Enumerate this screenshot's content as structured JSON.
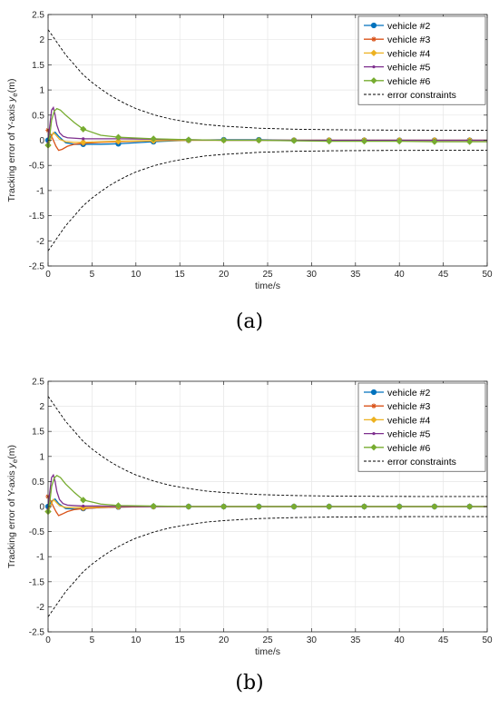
{
  "chart_data": [
    {
      "type": "line",
      "caption": "(a)",
      "xlabel": "time/s",
      "ylabel": "Tracking error of Y-axis",
      "ylabel_symbol": "y",
      "ylabel_sub": "e",
      "ylabel_unit": "(m)",
      "xlim": [
        0,
        50
      ],
      "ylim": [
        -2.5,
        2.5
      ],
      "xticks": [
        0,
        5,
        10,
        15,
        20,
        25,
        30,
        35,
        40,
        45,
        50
      ],
      "yticks": [
        -2.5,
        -2,
        -1.5,
        -1,
        -0.5,
        0,
        0.5,
        1,
        1.5,
        2,
        2.5
      ],
      "grid": true,
      "legend_position": "top-right",
      "series": [
        {
          "name": "vehicle #2",
          "color": "#0072BD",
          "marker": "circle",
          "x": [
            0,
            0.2,
            0.5,
            0.8,
            1.2,
            2,
            3,
            4,
            6,
            8,
            12,
            16,
            20,
            24,
            28,
            32,
            36,
            40,
            44,
            48,
            50
          ],
          "y": [
            0,
            0.05,
            0.12,
            0.16,
            0.08,
            -0.05,
            -0.08,
            -0.08,
            -0.08,
            -0.07,
            -0.03,
            0.0,
            0.01,
            0.01,
            0.0,
            0.0,
            0.0,
            0.0,
            0.0,
            0.0,
            0.0
          ]
        },
        {
          "name": "vehicle #3",
          "color": "#D95319",
          "marker": "star",
          "x": [
            0,
            0.3,
            0.6,
            0.9,
            1.2,
            1.6,
            2.2,
            3,
            4,
            6,
            8,
            12,
            16,
            20,
            24,
            28,
            32,
            36,
            40,
            44,
            48,
            50
          ],
          "y": [
            0.2,
            0.12,
            0.0,
            -0.12,
            -0.2,
            -0.18,
            -0.12,
            -0.08,
            -0.06,
            -0.04,
            -0.03,
            -0.01,
            0.0,
            0.0,
            0.0,
            0.0,
            0.0,
            0.0,
            0.0,
            0.0,
            0.0,
            0.0
          ]
        },
        {
          "name": "vehicle #4",
          "color": "#EDB120",
          "marker": "diamond",
          "x": [
            0,
            0.3,
            0.6,
            0.9,
            1.3,
            2,
            3,
            4,
            6,
            8,
            12,
            16,
            20,
            24,
            28,
            32,
            36,
            40,
            44,
            48,
            50
          ],
          "y": [
            -0.1,
            0.02,
            0.15,
            0.1,
            0.02,
            -0.03,
            -0.04,
            -0.04,
            -0.03,
            -0.02,
            -0.01,
            0.0,
            0.0,
            0.0,
            0.0,
            0.0,
            0.0,
            0.0,
            0.0,
            0.0,
            0.0
          ]
        },
        {
          "name": "vehicle #5",
          "color": "#7E2F8E",
          "marker": "point",
          "x": [
            0,
            0.2,
            0.4,
            0.6,
            0.8,
            1.0,
            1.3,
            1.7,
            2.2,
            3,
            4,
            6,
            8,
            12,
            16,
            20,
            24,
            28,
            32,
            36,
            40,
            44,
            48,
            50
          ],
          "y": [
            -0.05,
            0.3,
            0.6,
            0.65,
            0.5,
            0.3,
            0.15,
            0.08,
            0.05,
            0.04,
            0.03,
            0.03,
            0.03,
            0.02,
            0.01,
            0.0,
            0.0,
            0.0,
            0.0,
            0.0,
            0.0,
            0.0,
            0.0,
            0.0
          ]
        },
        {
          "name": "vehicle #6",
          "color": "#77AC30",
          "marker": "diamond",
          "x": [
            0,
            0.2,
            0.4,
            0.7,
            1.0,
            1.4,
            2,
            3,
            4,
            6,
            8,
            12,
            16,
            20,
            24,
            28,
            32,
            36,
            40,
            44,
            48,
            50
          ],
          "y": [
            -0.1,
            0.1,
            0.4,
            0.58,
            0.63,
            0.6,
            0.5,
            0.35,
            0.22,
            0.1,
            0.06,
            0.03,
            0.01,
            0.0,
            0.0,
            -0.01,
            -0.02,
            -0.02,
            -0.02,
            -0.03,
            -0.03,
            -0.03
          ]
        },
        {
          "name": "error constraints",
          "color": "#000000",
          "marker": "none",
          "dashed": true,
          "x": [
            0,
            1,
            2,
            3,
            4,
            5,
            6,
            7,
            8,
            9,
            10,
            12,
            14,
            16,
            18,
            20,
            22,
            24,
            26,
            28,
            30,
            32,
            34,
            36,
            38,
            40,
            42,
            44,
            46,
            48,
            50
          ],
          "y": [
            2.2,
            1.95,
            1.7,
            1.5,
            1.3,
            1.15,
            1.02,
            0.9,
            0.8,
            0.71,
            0.63,
            0.51,
            0.42,
            0.36,
            0.31,
            0.28,
            0.26,
            0.24,
            0.23,
            0.22,
            0.215,
            0.21,
            0.207,
            0.205,
            0.203,
            0.202,
            0.201,
            0.2,
            0.2,
            0.2,
            0.2
          ]
        }
      ]
    },
    {
      "type": "line",
      "caption": "(b)",
      "xlabel": "time/s",
      "ylabel": "Tracking error of Y-axis",
      "ylabel_symbol": "y",
      "ylabel_sub": "e",
      "ylabel_unit": "(m)",
      "xlim": [
        0,
        50
      ],
      "ylim": [
        -2.5,
        2.5
      ],
      "xticks": [
        0,
        5,
        10,
        15,
        20,
        25,
        30,
        35,
        40,
        45,
        50
      ],
      "yticks": [
        -2.5,
        -2,
        -1.5,
        -1,
        -0.5,
        0,
        0.5,
        1,
        1.5,
        2,
        2.5
      ],
      "grid": true,
      "legend_position": "top-right",
      "series": [
        {
          "name": "vehicle #2",
          "color": "#0072BD",
          "marker": "circle",
          "x": [
            0,
            0.2,
            0.5,
            0.8,
            1.2,
            2,
            3,
            4,
            6,
            8,
            12,
            16,
            20,
            24,
            28,
            32,
            36,
            40,
            44,
            48,
            50
          ],
          "y": [
            0,
            0.05,
            0.12,
            0.15,
            0.06,
            -0.04,
            -0.05,
            -0.04,
            -0.02,
            -0.01,
            0.0,
            0.0,
            0.0,
            0.0,
            0.0,
            0.0,
            0.0,
            0.0,
            0.0,
            0.0,
            0.0
          ]
        },
        {
          "name": "vehicle #3",
          "color": "#D95319",
          "marker": "star",
          "x": [
            0,
            0.3,
            0.6,
            0.9,
            1.2,
            1.6,
            2.2,
            3,
            4,
            6,
            8,
            12,
            16,
            20,
            24,
            28,
            32,
            36,
            40,
            44,
            48,
            50
          ],
          "y": [
            0.2,
            0.12,
            0.0,
            -0.1,
            -0.18,
            -0.15,
            -0.1,
            -0.06,
            -0.04,
            -0.02,
            -0.01,
            0.0,
            0.0,
            0.0,
            0.0,
            0.0,
            0.0,
            0.0,
            0.0,
            0.0,
            0.0,
            0.0
          ]
        },
        {
          "name": "vehicle #4",
          "color": "#EDB120",
          "marker": "diamond",
          "x": [
            0,
            0.3,
            0.6,
            0.9,
            1.3,
            2,
            3,
            4,
            6,
            8,
            12,
            16,
            20,
            24,
            28,
            32,
            36,
            40,
            44,
            48,
            50
          ],
          "y": [
            -0.1,
            0.02,
            0.14,
            0.09,
            0.02,
            -0.02,
            -0.02,
            -0.02,
            -0.01,
            0.0,
            0.0,
            0.0,
            0.0,
            0.0,
            0.0,
            0.0,
            0.0,
            0.0,
            0.0,
            0.0,
            0.0
          ]
        },
        {
          "name": "vehicle #5",
          "color": "#7E2F8E",
          "marker": "point",
          "x": [
            0,
            0.2,
            0.4,
            0.6,
            0.8,
            1.0,
            1.3,
            1.7,
            2.2,
            3,
            4,
            6,
            8,
            12,
            16,
            20,
            24,
            28,
            32,
            36,
            40,
            44,
            48,
            50
          ],
          "y": [
            -0.05,
            0.3,
            0.58,
            0.63,
            0.5,
            0.3,
            0.14,
            0.06,
            0.03,
            0.02,
            0.01,
            0.01,
            0.0,
            0.0,
            0.0,
            0.0,
            0.0,
            0.0,
            0.0,
            0.0,
            0.0,
            0.0,
            0.0,
            0.0
          ]
        },
        {
          "name": "vehicle #6",
          "color": "#77AC30",
          "marker": "diamond",
          "x": [
            0,
            0.2,
            0.4,
            0.7,
            1.0,
            1.4,
            2,
            3,
            4,
            6,
            8,
            12,
            16,
            20,
            24,
            28,
            32,
            36,
            40,
            44,
            48,
            50
          ],
          "y": [
            -0.1,
            0.1,
            0.4,
            0.57,
            0.62,
            0.58,
            0.45,
            0.28,
            0.13,
            0.05,
            0.02,
            0.01,
            0.0,
            0.0,
            0.0,
            0.0,
            0.0,
            0.0,
            0.0,
            0.0,
            0.0,
            0.0
          ]
        },
        {
          "name": "error constraints",
          "color": "#000000",
          "marker": "none",
          "dashed": true,
          "x": [
            0,
            1,
            2,
            3,
            4,
            5,
            6,
            7,
            8,
            9,
            10,
            12,
            14,
            16,
            18,
            20,
            22,
            24,
            26,
            28,
            30,
            32,
            34,
            36,
            38,
            40,
            42,
            44,
            46,
            48,
            50
          ],
          "y": [
            2.2,
            1.95,
            1.7,
            1.5,
            1.3,
            1.15,
            1.02,
            0.9,
            0.8,
            0.71,
            0.63,
            0.51,
            0.42,
            0.36,
            0.31,
            0.28,
            0.26,
            0.24,
            0.23,
            0.22,
            0.215,
            0.21,
            0.207,
            0.205,
            0.203,
            0.202,
            0.201,
            0.2,
            0.2,
            0.2,
            0.2
          ]
        }
      ]
    }
  ]
}
